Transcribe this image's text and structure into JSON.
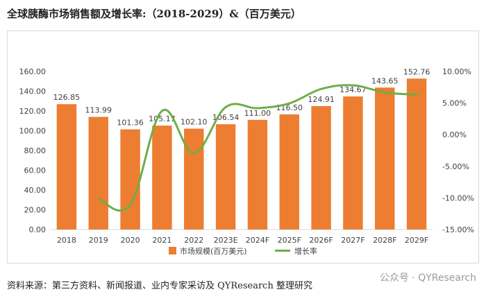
{
  "title": "全球胰酶市场销售额及增长率:（2018-2029）&（百万美元）",
  "source": "资料来源：第三方资料、新闻报道、业内专家采访及 QYResearch 整理研究",
  "watermark": "公众号 · QYResearch",
  "chart_data": {
    "type": "bar",
    "categories": [
      "2018",
      "2019",
      "2020",
      "2021",
      "2022",
      "2023E",
      "2024F",
      "2025F",
      "2026F",
      "2027F",
      "2028F",
      "2029F"
    ],
    "series": [
      {
        "name": "市场规模(百万美元)",
        "type": "bar",
        "axis": "left",
        "color": "#ed7d31",
        "values": [
          126.85,
          113.99,
          101.36,
          105.17,
          102.1,
          106.54,
          111.0,
          116.5,
          124.91,
          134.67,
          143.65,
          152.76
        ],
        "labels": [
          "126.85",
          "113.99",
          "101.36",
          "105.17",
          "102.10",
          "106.54",
          "111.00",
          "116.50",
          "124.91",
          "134.67",
          "143.65",
          "152.76"
        ]
      },
      {
        "name": "增长率",
        "type": "line",
        "axis": "right",
        "color": "#70ad47",
        "values": [
          null,
          -10.14,
          -11.08,
          3.76,
          -2.92,
          4.35,
          4.19,
          4.95,
          7.22,
          7.81,
          6.67,
          6.34
        ]
      }
    ],
    "y_left": {
      "min": 0,
      "max": 160,
      "ticks": [
        0,
        20,
        40,
        60,
        80,
        100,
        120,
        140,
        160
      ],
      "tick_labels": [
        "0.00",
        "20.00",
        "40.00",
        "60.00",
        "80.00",
        "100.00",
        "120.00",
        "140.00",
        "160.00"
      ]
    },
    "y_right": {
      "min": -15,
      "max": 10,
      "ticks": [
        -15,
        -10,
        -5,
        0,
        5,
        10
      ],
      "tick_labels": [
        "-15.00%",
        "-10.00%",
        "-5.00%",
        "0.00%",
        "5.00%",
        "10.00%"
      ]
    },
    "grid": false,
    "legend_position": "bottom"
  }
}
